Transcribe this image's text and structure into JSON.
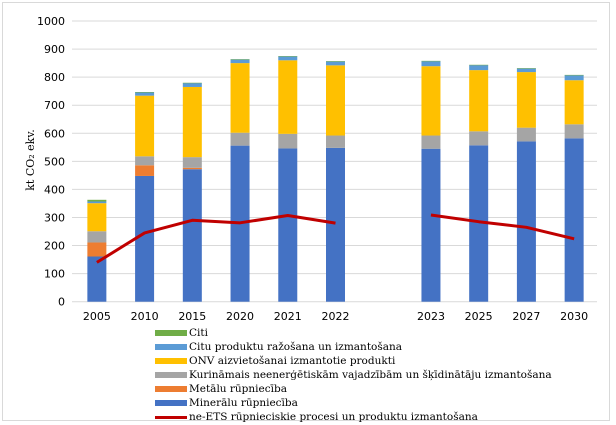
{
  "chart_data": {
    "type": "bar",
    "stacked": true,
    "title": "",
    "xlabel": "",
    "ylabel": "kt CO₂ ekv.",
    "ylim": [
      0,
      1000
    ],
    "yticks": [
      "0",
      "100",
      "200",
      "300",
      "400",
      "500",
      "600",
      "700",
      "800",
      "900",
      "1000"
    ],
    "grid": true,
    "legend_position": "bottom",
    "categories": [
      "2005",
      "2010",
      "2015",
      "2020",
      "2021",
      "2022",
      "2023",
      "2025",
      "2027",
      "2030"
    ],
    "series": [
      {
        "name": "Minerālu rūpniecība",
        "color": "#4472C4",
        "values": [
          161,
          448,
          472,
          556,
          546,
          548,
          545,
          557,
          571,
          582
        ]
      },
      {
        "name": "Metālu rūpniecība",
        "color": "#ED7D31",
        "values": [
          50,
          38,
          5,
          0,
          0,
          0,
          0,
          0,
          0,
          0
        ]
      },
      {
        "name": "Kurināmais neenerģētiskām vajadzībām un šķīdinātāju izmantošana",
        "color": "#A5A5A5",
        "values": [
          40,
          32,
          38,
          46,
          52,
          44,
          47,
          50,
          49,
          50
        ]
      },
      {
        "name": "ONV aizvietošanai izmantotie produkti",
        "color": "#FFC000",
        "values": [
          100,
          216,
          250,
          248,
          262,
          250,
          247,
          218,
          198,
          157
        ]
      },
      {
        "name": "Citu produktu ražošana un izmantošana",
        "color": "#5B9BD5",
        "values": [
          6,
          12,
          14,
          13,
          14,
          14,
          18,
          18,
          13,
          18
        ]
      },
      {
        "name": "Citi",
        "color": "#70AD47",
        "values": [
          6,
          1,
          1,
          1,
          1,
          1,
          1,
          1,
          1,
          1
        ]
      }
    ],
    "line_series": {
      "name": "ne-ETS rūpnieciskie procesi un produktu izmantošana",
      "color": "#C00000",
      "segments": [
        {
          "categories": [
            "2005",
            "2010",
            "2015",
            "2020",
            "2021",
            "2022"
          ],
          "values": [
            140,
            245,
            290,
            281,
            307,
            280
          ]
        },
        {
          "categories": [
            "2023",
            "2025",
            "2027",
            "2030"
          ],
          "values": [
            309,
            285,
            265,
            224
          ]
        }
      ]
    },
    "legend": [
      {
        "label": "Citi",
        "color": "#70AD47",
        "kind": "bar"
      },
      {
        "label": "Citu produktu ražošana un izmantošana",
        "color": "#5B9BD5",
        "kind": "bar"
      },
      {
        "label": "ONV aizvietošanai izmantotie produkti",
        "color": "#FFC000",
        "kind": "bar"
      },
      {
        "label": "Kurināmais neenerģētiskām vajadzībām un šķīdinātāju izmantošana",
        "color": "#A5A5A5",
        "kind": "bar"
      },
      {
        "label": "Metālu rūpniecība",
        "color": "#ED7D31",
        "kind": "bar"
      },
      {
        "label": "Minerālu rūpniecība",
        "color": "#4472C4",
        "kind": "bar"
      },
      {
        "label": "ne-ETS rūpnieciskie procesi un produktu izmantošana",
        "color": "#C00000",
        "kind": "line"
      }
    ]
  }
}
